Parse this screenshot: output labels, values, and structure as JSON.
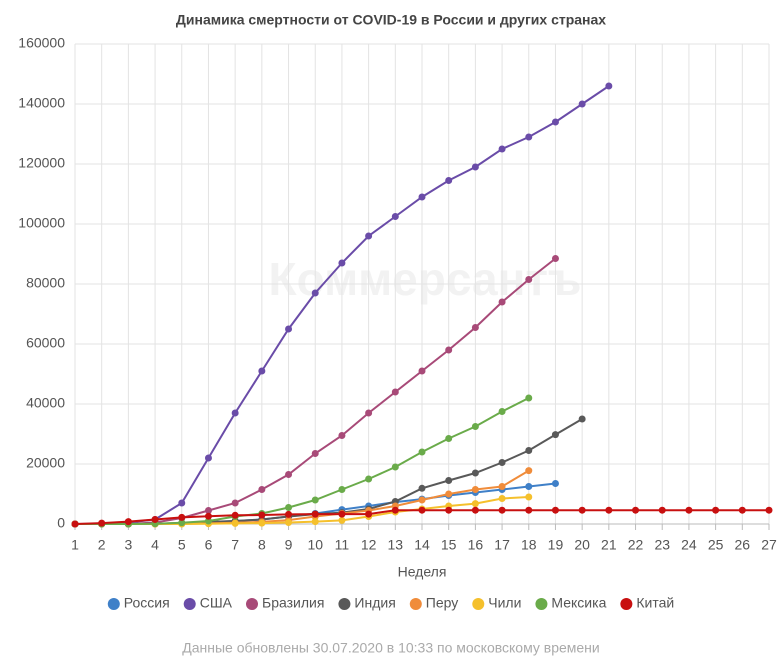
{
  "chart_data": {
    "type": "line",
    "title": "Динамика смертности от COVID-19 в России и других странах",
    "watermark": "Коммерсантъ",
    "x_label": "Неделя",
    "footnote": "Данные обновлены 30.07.2020 в 10:33 по московскому времени",
    "x": [
      1,
      2,
      3,
      4,
      5,
      6,
      7,
      8,
      9,
      10,
      11,
      12,
      13,
      14,
      15,
      16,
      17,
      18,
      19,
      20,
      21,
      22,
      23,
      24,
      25,
      26,
      27
    ],
    "xlim": [
      1,
      27
    ],
    "xticks": [
      1,
      2,
      3,
      4,
      5,
      6,
      7,
      8,
      9,
      10,
      11,
      12,
      13,
      14,
      15,
      16,
      17,
      18,
      19,
      20,
      21,
      22,
      23,
      24,
      25,
      26,
      27
    ],
    "ylim": [
      0,
      160000
    ],
    "yticks": [
      0,
      20000,
      40000,
      60000,
      80000,
      100000,
      120000,
      140000,
      160000
    ],
    "grid": true,
    "legend": "bottom",
    "series": [
      {
        "name": "Россия",
        "color": "#3f80c8",
        "values": [
          0,
          0,
          0,
          100,
          300,
          600,
          1000,
          1500,
          2500,
          3500,
          4800,
          6000,
          7300,
          8300,
          9500,
          10500,
          11500,
          12500,
          13500,
          null,
          null,
          null,
          null,
          null,
          null,
          null,
          null
        ]
      },
      {
        "name": "США",
        "color": "#6a4ca8",
        "values": [
          0,
          100,
          500,
          1500,
          7000,
          22000,
          37000,
          51000,
          65000,
          77000,
          87000,
          96000,
          102500,
          109000,
          114500,
          119000,
          125000,
          129000,
          134000,
          140000,
          146000,
          null,
          null,
          null,
          null,
          null,
          null
        ]
      },
      {
        "name": "Бразилия",
        "color": "#a84a78",
        "values": [
          0,
          0,
          0,
          500,
          2000,
          4500,
          7000,
          11500,
          16500,
          23500,
          29500,
          37000,
          44000,
          51000,
          58000,
          65500,
          74000,
          81500,
          88500,
          null,
          null,
          null,
          null,
          null,
          null,
          null,
          null
        ]
      },
      {
        "name": "Индия",
        "color": "#595959",
        "values": [
          0,
          0,
          0,
          100,
          300,
          700,
          1000,
          1500,
          2500,
          3300,
          3800,
          5000,
          7500,
          11900,
          14500,
          17000,
          20500,
          24500,
          29800,
          35000,
          null,
          null,
          null,
          null,
          null,
          null,
          null
        ]
      },
      {
        "name": "Перу",
        "color": "#f08c3a",
        "values": [
          0,
          0,
          0,
          0,
          100,
          200,
          400,
          700,
          1300,
          2500,
          3500,
          4500,
          6000,
          8000,
          10000,
          11500,
          12500,
          17800,
          null,
          null,
          null,
          null,
          null,
          null,
          null,
          null,
          null
        ]
      },
      {
        "name": "Чили",
        "color": "#f5c02c",
        "values": [
          0,
          0,
          0,
          0,
          0,
          100,
          200,
          300,
          500,
          800,
          1200,
          2500,
          4000,
          5000,
          6000,
          6800,
          8500,
          9000,
          null,
          null,
          null,
          null,
          null,
          null,
          null,
          null,
          null
        ]
      },
      {
        "name": "Мексика",
        "color": "#6aab4a",
        "values": [
          0,
          0,
          0,
          100,
          400,
          1000,
          2500,
          3500,
          5500,
          8000,
          11500,
          15000,
          19000,
          24000,
          28500,
          32500,
          37500,
          42000,
          null,
          null,
          null,
          null,
          null,
          null,
          null,
          null,
          null
        ]
      },
      {
        "name": "Китай",
        "color": "#c81010",
        "values": [
          0,
          300,
          800,
          1500,
          2200,
          2600,
          2900,
          3000,
          3200,
          3300,
          3300,
          3300,
          4600,
          4600,
          4600,
          4600,
          4600,
          4600,
          4600,
          4600,
          4600,
          4600,
          4600,
          4600,
          4600,
          4600,
          4600
        ]
      }
    ]
  }
}
